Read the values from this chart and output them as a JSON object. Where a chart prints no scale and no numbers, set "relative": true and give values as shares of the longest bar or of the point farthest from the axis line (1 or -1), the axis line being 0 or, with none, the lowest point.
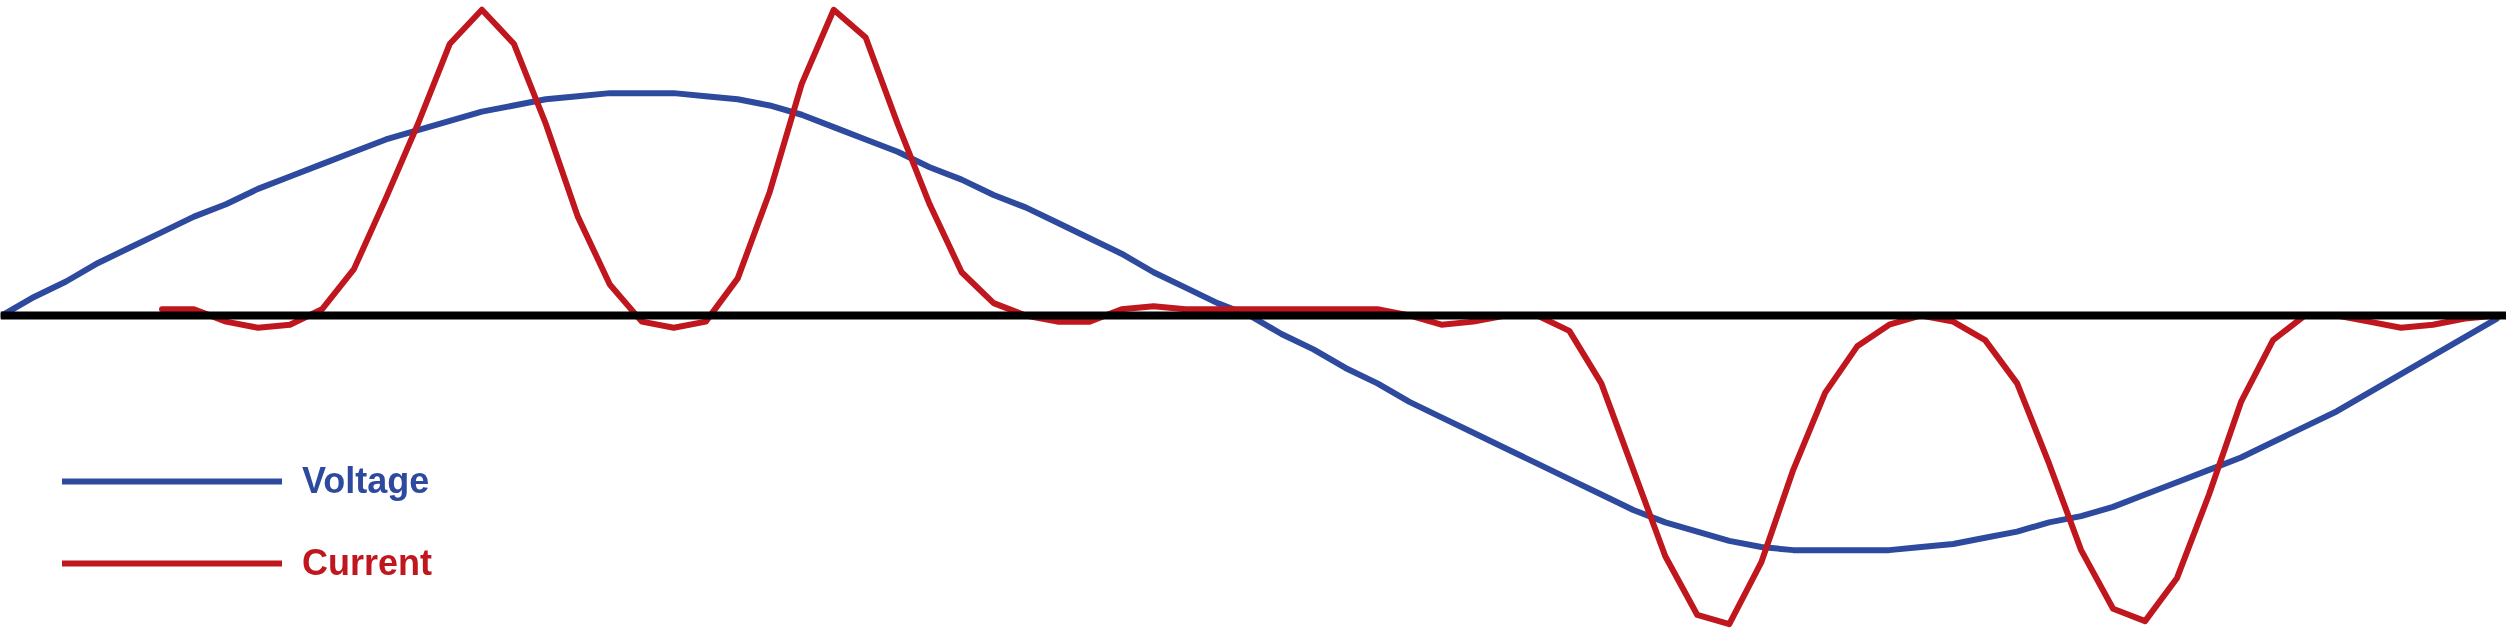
{
  "chart_data": {
    "type": "line",
    "relative": true,
    "legend": "bottom left",
    "categories": [
      null,
      null,
      null,
      null,
      null,
      null,
      null,
      null,
      null,
      null,
      null,
      null,
      null,
      null,
      null,
      null,
      null,
      null,
      null,
      null,
      null,
      null,
      null,
      null,
      null,
      null,
      null,
      null,
      null,
      null,
      null,
      null,
      null,
      null,
      null,
      null,
      null,
      null,
      null,
      null,
      null,
      null,
      null,
      null,
      null,
      null,
      null,
      null,
      null,
      null,
      null,
      null,
      null,
      null,
      null,
      null,
      null,
      null,
      null,
      null,
      null,
      null,
      null,
      null,
      null,
      null,
      null,
      null,
      null,
      null,
      null,
      null,
      null,
      null,
      null,
      null,
      null,
      null,
      null
    ],
    "series": [
      {
        "name": "Voltage",
        "color": "#2e4a9e",
        "values": [
          0.0,
          0.06,
          0.11,
          0.17,
          0.22,
          0.27,
          0.32,
          0.36,
          0.41,
          0.45,
          0.49,
          0.53,
          0.57,
          0.6,
          0.63,
          0.66,
          0.68,
          0.7,
          0.71,
          0.72,
          0.72,
          0.72,
          0.71,
          0.7,
          0.68,
          0.65,
          0.61,
          0.57,
          0.53,
          0.48,
          0.44,
          0.39,
          0.35,
          0.3,
          0.25,
          0.2,
          0.14,
          0.09,
          0.04,
          0.0,
          -0.06,
          -0.11,
          -0.17,
          -0.22,
          -0.28,
          -0.33,
          -0.38,
          -0.43,
          -0.48,
          -0.53,
          -0.58,
          -0.63,
          -0.67,
          -0.7,
          -0.73,
          -0.75,
          -0.76,
          -0.76,
          -0.76,
          -0.76,
          -0.75,
          -0.74,
          -0.72,
          -0.7,
          -0.67,
          -0.65,
          -0.62,
          -0.58,
          -0.54,
          -0.5,
          -0.46,
          -0.41,
          -0.36,
          -0.31,
          -0.25,
          -0.19,
          -0.13,
          -0.07,
          -0.01
        ]
      },
      {
        "name": "Current",
        "color": "#c0171f",
        "values": [
          null,
          null,
          null,
          null,
          null,
          0.02,
          0.02,
          -0.02,
          -0.04,
          -0.03,
          0.02,
          0.15,
          0.38,
          0.62,
          0.88,
          0.99,
          0.88,
          0.62,
          0.32,
          0.1,
          -0.02,
          -0.04,
          -0.02,
          0.12,
          0.4,
          0.75,
          0.99,
          0.9,
          0.62,
          0.36,
          0.14,
          0.04,
          0.0,
          -0.02,
          -0.02,
          0.02,
          0.03,
          0.02,
          0.02,
          0.02,
          0.02,
          0.02,
          0.02,
          0.02,
          0.0,
          -0.03,
          -0.02,
          0.0,
          0.0,
          -0.05,
          -0.22,
          -0.5,
          -0.78,
          -0.97,
          -1.0,
          -0.8,
          -0.5,
          -0.25,
          -0.1,
          -0.03,
          0.0,
          -0.02,
          -0.08,
          -0.22,
          -0.48,
          -0.76,
          -0.95,
          -0.99,
          -0.85,
          -0.58,
          -0.28,
          -0.08,
          0.0,
          0.0,
          -0.02,
          -0.04,
          -0.03,
          -0.01,
          0.0
        ]
      }
    ]
  }
}
